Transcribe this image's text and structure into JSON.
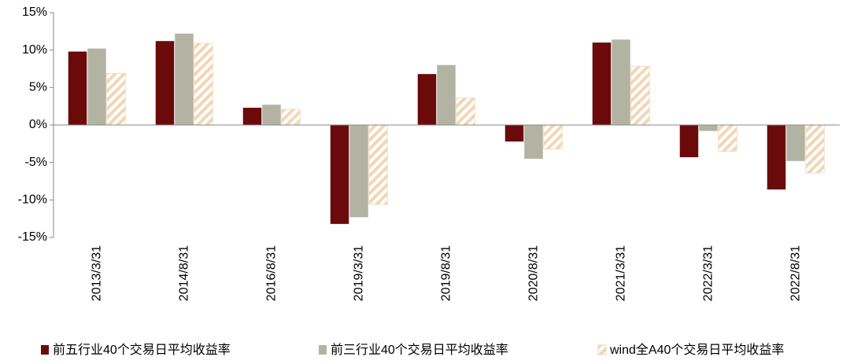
{
  "chart_data": {
    "type": "bar",
    "categories": [
      "2013/3/31",
      "2014/8/31",
      "2016/8/31",
      "2019/3/31",
      "2019/8/31",
      "2020/8/31",
      "2021/3/31",
      "2022/3/31",
      "2022/8/31"
    ],
    "series": [
      {
        "name": "前五行业40个交易日平均收益率",
        "color": "#6b0a0a",
        "values": [
          9.8,
          11.2,
          2.3,
          -13.2,
          6.8,
          -2.2,
          11.0,
          -4.3,
          -8.6
        ]
      },
      {
        "name": "前三行业40个交易日平均收益率",
        "color": "#b3b3a3",
        "values": [
          10.2,
          12.2,
          2.7,
          -12.3,
          8.0,
          -4.5,
          11.4,
          -0.8,
          -4.8
        ]
      },
      {
        "name": "wind全A40个交易日平均收益率",
        "color": "#f2d6b6",
        "pattern": "hatch",
        "values": [
          6.9,
          10.9,
          2.1,
          -10.6,
          3.6,
          -3.2,
          7.8,
          -3.5,
          -6.4
        ]
      }
    ],
    "ylim": [
      -15,
      15
    ],
    "yticks": [
      {
        "value": -15,
        "label": "-15%"
      },
      {
        "value": -10,
        "label": "-10%"
      },
      {
        "value": -5,
        "label": "-5%"
      },
      {
        "value": 0,
        "label": "0%"
      },
      {
        "value": 5,
        "label": "5%"
      },
      {
        "value": 10,
        "label": "10%"
      },
      {
        "value": 15,
        "label": "15%"
      }
    ],
    "grid": false,
    "legend": "bottom"
  }
}
